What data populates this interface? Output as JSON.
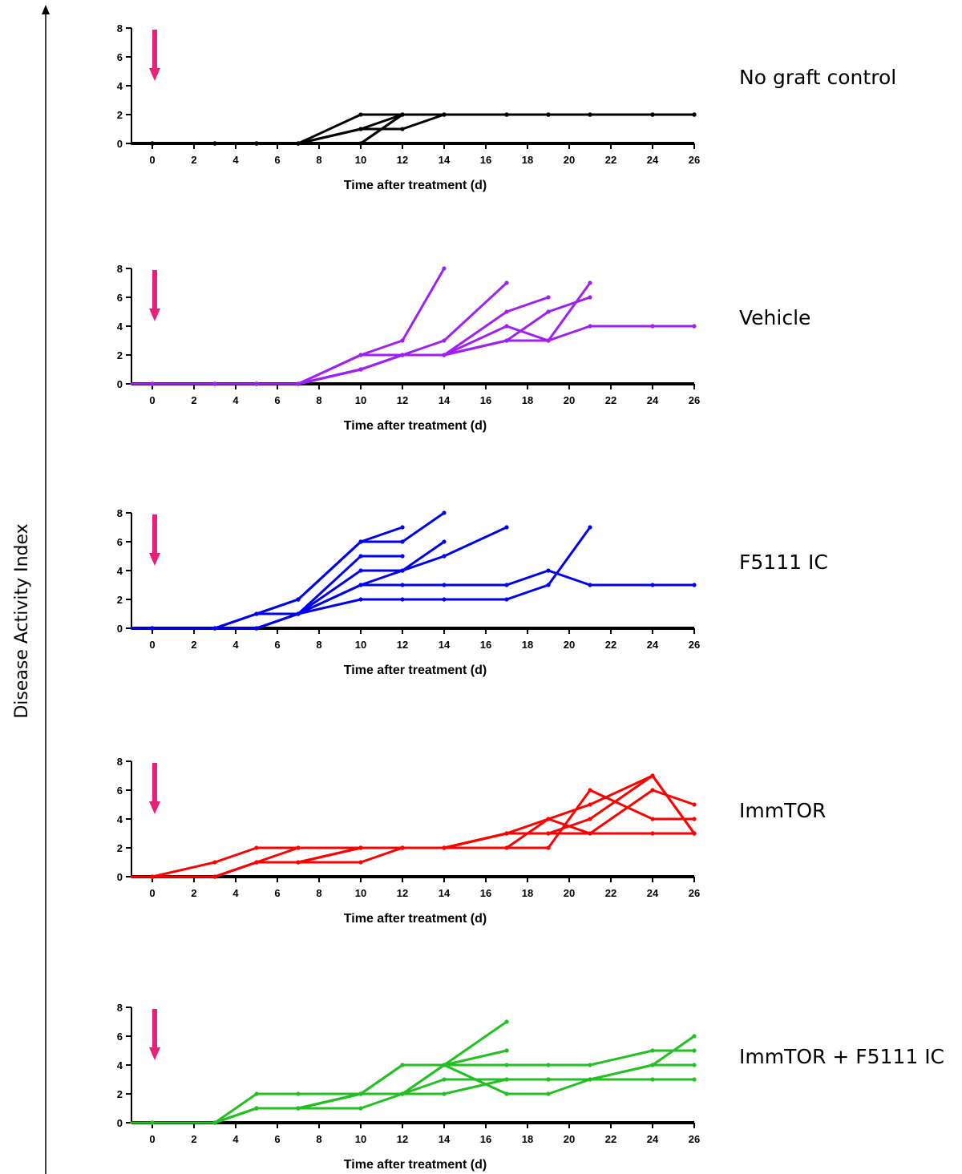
{
  "y_axis_title": "Disease Activity Index",
  "colors": {
    "arrow": "#e8207a",
    "axis": "#000000"
  },
  "chart_data": [
    {
      "type": "line",
      "label": "No graft control",
      "color": "#000000",
      "xlabel": "Time after treatment (d)",
      "xlim": [
        -1,
        26
      ],
      "ylim": [
        0,
        8
      ],
      "xticks": [
        0,
        2,
        4,
        6,
        8,
        10,
        12,
        14,
        16,
        18,
        20,
        22,
        24,
        26
      ],
      "yticks": [
        0,
        2,
        4,
        6,
        8
      ],
      "annotation": "treatment-arrow at day 0",
      "series": [
        {
          "x": [
            -1,
            0,
            3,
            5,
            7,
            10,
            12,
            14,
            17,
            19,
            21,
            24,
            26
          ],
          "y": [
            0,
            0,
            0,
            0,
            0,
            2,
            2,
            2,
            2,
            2,
            2,
            2,
            2
          ]
        },
        {
          "x": [
            -1,
            0,
            3,
            5,
            7,
            10,
            12,
            14,
            17,
            19,
            21,
            24,
            26
          ],
          "y": [
            0,
            0,
            0,
            0,
            0,
            1,
            2,
            2,
            2,
            2,
            2,
            2,
            2
          ]
        },
        {
          "x": [
            -1,
            0,
            3,
            5,
            7,
            10,
            12,
            14,
            17,
            19,
            21,
            24,
            26
          ],
          "y": [
            0,
            0,
            0,
            0,
            0,
            1,
            1,
            2,
            2,
            2,
            2,
            2,
            2
          ]
        },
        {
          "x": [
            -1,
            0,
            3,
            5,
            7,
            10,
            12,
            14,
            17,
            19,
            21,
            24,
            26
          ],
          "y": [
            0,
            0,
            0,
            0,
            0,
            0,
            2,
            2,
            2,
            2,
            2,
            2,
            2
          ]
        },
        {
          "x": [
            -1,
            0,
            3,
            5,
            7,
            10,
            12,
            14,
            17,
            19,
            21,
            24,
            26
          ],
          "y": [
            0,
            0,
            0,
            0,
            0,
            0,
            2,
            2,
            2,
            2,
            2,
            2,
            2
          ]
        }
      ]
    },
    {
      "type": "line",
      "label": "Vehicle",
      "color": "#a020f0",
      "xlabel": "Time after treatment (d)",
      "xlim": [
        -1,
        26
      ],
      "ylim": [
        0,
        8
      ],
      "xticks": [
        0,
        2,
        4,
        6,
        8,
        10,
        12,
        14,
        16,
        18,
        20,
        22,
        24,
        26
      ],
      "yticks": [
        0,
        2,
        4,
        6,
        8
      ],
      "annotation": "treatment-arrow at day 0",
      "series": [
        {
          "x": [
            -1,
            0,
            3,
            5,
            7,
            10,
            12,
            14
          ],
          "y": [
            0,
            0,
            0,
            0,
            0,
            2,
            3,
            8
          ]
        },
        {
          "x": [
            -1,
            0,
            3,
            5,
            7,
            10,
            12,
            14,
            17
          ],
          "y": [
            0,
            0,
            0,
            0,
            0,
            2,
            2,
            3,
            7
          ]
        },
        {
          "x": [
            -1,
            0,
            3,
            5,
            7,
            10,
            12,
            14,
            17,
            19
          ],
          "y": [
            0,
            0,
            0,
            0,
            0,
            1,
            2,
            2,
            5,
            6
          ]
        },
        {
          "x": [
            -1,
            0,
            3,
            5,
            7,
            10,
            12,
            14,
            17,
            19,
            21
          ],
          "y": [
            0,
            0,
            0,
            0,
            0,
            1,
            2,
            2,
            3,
            5,
            6
          ]
        },
        {
          "x": [
            -1,
            0,
            3,
            5,
            7,
            10,
            12,
            14,
            17,
            19,
            21
          ],
          "y": [
            0,
            0,
            0,
            0,
            0,
            1,
            2,
            2,
            4,
            3,
            7
          ]
        },
        {
          "x": [
            -1,
            0,
            3,
            5,
            7,
            10,
            12,
            14,
            17,
            19,
            21,
            24,
            26
          ],
          "y": [
            0,
            0,
            0,
            0,
            0,
            1,
            2,
            2,
            3,
            3,
            4,
            4,
            4
          ]
        }
      ]
    },
    {
      "type": "line",
      "label": "F5111 IC",
      "color": "#0000ee",
      "xlabel": "Time after treatment (d)",
      "xlim": [
        -1,
        26
      ],
      "ylim": [
        0,
        8
      ],
      "xticks": [
        0,
        2,
        4,
        6,
        8,
        10,
        12,
        14,
        16,
        18,
        20,
        22,
        24,
        26
      ],
      "yticks": [
        0,
        2,
        4,
        6,
        8
      ],
      "annotation": "treatment-arrow at day 0",
      "series": [
        {
          "x": [
            -1,
            0,
            3,
            5,
            7,
            10,
            12
          ],
          "y": [
            0,
            0,
            0,
            1,
            2,
            6,
            7
          ]
        },
        {
          "x": [
            -1,
            0,
            3,
            5,
            7,
            10,
            12,
            14
          ],
          "y": [
            0,
            0,
            0,
            1,
            2,
            6,
            6,
            8
          ]
        },
        {
          "x": [
            -1,
            0,
            3,
            5,
            7,
            10,
            12
          ],
          "y": [
            0,
            0,
            0,
            1,
            1,
            5,
            5
          ]
        },
        {
          "x": [
            -1,
            0,
            3,
            5,
            7,
            10,
            12,
            14
          ],
          "y": [
            0,
            0,
            0,
            0,
            1,
            4,
            4,
            6
          ]
        },
        {
          "x": [
            -1,
            0,
            3,
            5,
            7,
            10,
            12,
            14,
            17
          ],
          "y": [
            0,
            0,
            0,
            0,
            1,
            3,
            4,
            5,
            7
          ]
        },
        {
          "x": [
            -1,
            0,
            3,
            5,
            7,
            10,
            12,
            14,
            17,
            19,
            21,
            24,
            26
          ],
          "y": [
            0,
            0,
            0,
            0,
            1,
            3,
            3,
            3,
            3,
            4,
            3,
            3,
            3
          ]
        },
        {
          "x": [
            -1,
            0,
            3,
            5,
            7,
            10,
            12,
            14,
            17,
            19,
            21
          ],
          "y": [
            0,
            0,
            0,
            0,
            1,
            2,
            2,
            2,
            2,
            3,
            7
          ]
        }
      ]
    },
    {
      "type": "line",
      "label": "ImmTOR",
      "color": "#ff0000",
      "xlabel": "Time after treatment (d)",
      "xlim": [
        -1,
        26
      ],
      "ylim": [
        0,
        8
      ],
      "xticks": [
        0,
        2,
        4,
        6,
        8,
        10,
        12,
        14,
        16,
        18,
        20,
        22,
        24,
        26
      ],
      "yticks": [
        0,
        2,
        4,
        6,
        8
      ],
      "annotation": "treatment-arrow at day 0",
      "series": [
        {
          "x": [
            -1,
            0,
            3,
            5,
            7,
            10,
            12,
            14,
            17,
            19,
            21,
            24,
            26
          ],
          "y": [
            0,
            0,
            1,
            2,
            2,
            2,
            2,
            2,
            3,
            3,
            3,
            3,
            3
          ]
        },
        {
          "x": [
            -1,
            0,
            3,
            5,
            7,
            10,
            12,
            14,
            17,
            19,
            21,
            24,
            26
          ],
          "y": [
            0,
            0,
            0,
            1,
            2,
            2,
            2,
            2,
            3,
            3,
            4,
            7,
            3
          ]
        },
        {
          "x": [
            -1,
            0,
            3,
            5,
            7,
            10,
            12,
            14,
            17,
            19,
            21,
            24,
            26
          ],
          "y": [
            0,
            0,
            0,
            1,
            1,
            2,
            2,
            2,
            3,
            4,
            3,
            6,
            5
          ]
        },
        {
          "x": [
            -1,
            0,
            3,
            5,
            7,
            10,
            12,
            14,
            17,
            19,
            21,
            24,
            26
          ],
          "y": [
            0,
            0,
            0,
            1,
            1,
            1,
            2,
            2,
            2,
            4,
            5,
            7,
            3
          ]
        },
        {
          "x": [
            -1,
            0,
            3,
            5,
            7,
            10,
            12,
            14,
            17,
            19,
            21,
            24,
            26
          ],
          "y": [
            0,
            0,
            0,
            1,
            1,
            2,
            2,
            2,
            2,
            2,
            6,
            4,
            4
          ]
        }
      ]
    },
    {
      "type": "line",
      "label": "ImmTOR + F5111 IC",
      "color": "#22c022",
      "xlabel": "Time after treatment (d)",
      "xlim": [
        -1,
        26
      ],
      "ylim": [
        0,
        8
      ],
      "xticks": [
        0,
        2,
        4,
        6,
        8,
        10,
        12,
        14,
        16,
        18,
        20,
        22,
        24,
        26
      ],
      "yticks": [
        0,
        2,
        4,
        6,
        8
      ],
      "annotation": "treatment-arrow at day 0",
      "series": [
        {
          "x": [
            -1,
            0,
            3,
            5,
            7,
            10,
            12,
            14,
            17
          ],
          "y": [
            0,
            0,
            0,
            1,
            1,
            2,
            2,
            4,
            7
          ]
        },
        {
          "x": [
            -1,
            0,
            3,
            5,
            7,
            10,
            12,
            14,
            17
          ],
          "y": [
            0,
            0,
            0,
            1,
            1,
            2,
            4,
            4,
            5
          ]
        },
        {
          "x": [
            -1,
            0,
            3,
            5,
            7,
            10,
            12,
            14,
            17,
            19,
            21,
            24,
            26
          ],
          "y": [
            0,
            0,
            0,
            2,
            2,
            2,
            4,
            4,
            4,
            4,
            4,
            5,
            5
          ]
        },
        {
          "x": [
            -1,
            0,
            3,
            5,
            7,
            10,
            12,
            14,
            17,
            19,
            21,
            24,
            26
          ],
          "y": [
            0,
            0,
            0,
            1,
            1,
            1,
            2,
            3,
            3,
            3,
            3,
            4,
            6
          ]
        },
        {
          "x": [
            -1,
            0,
            3,
            5,
            7,
            10,
            12,
            14,
            17,
            19,
            21,
            24,
            26
          ],
          "y": [
            0,
            0,
            0,
            1,
            1,
            2,
            2,
            2,
            3,
            3,
            3,
            3,
            3
          ]
        },
        {
          "x": [
            -1,
            0,
            3,
            5,
            7,
            10,
            12,
            14,
            17,
            19,
            21,
            24,
            26
          ],
          "y": [
            0,
            0,
            0,
            1,
            1,
            2,
            2,
            4,
            2,
            2,
            3,
            4,
            4
          ]
        }
      ]
    }
  ]
}
